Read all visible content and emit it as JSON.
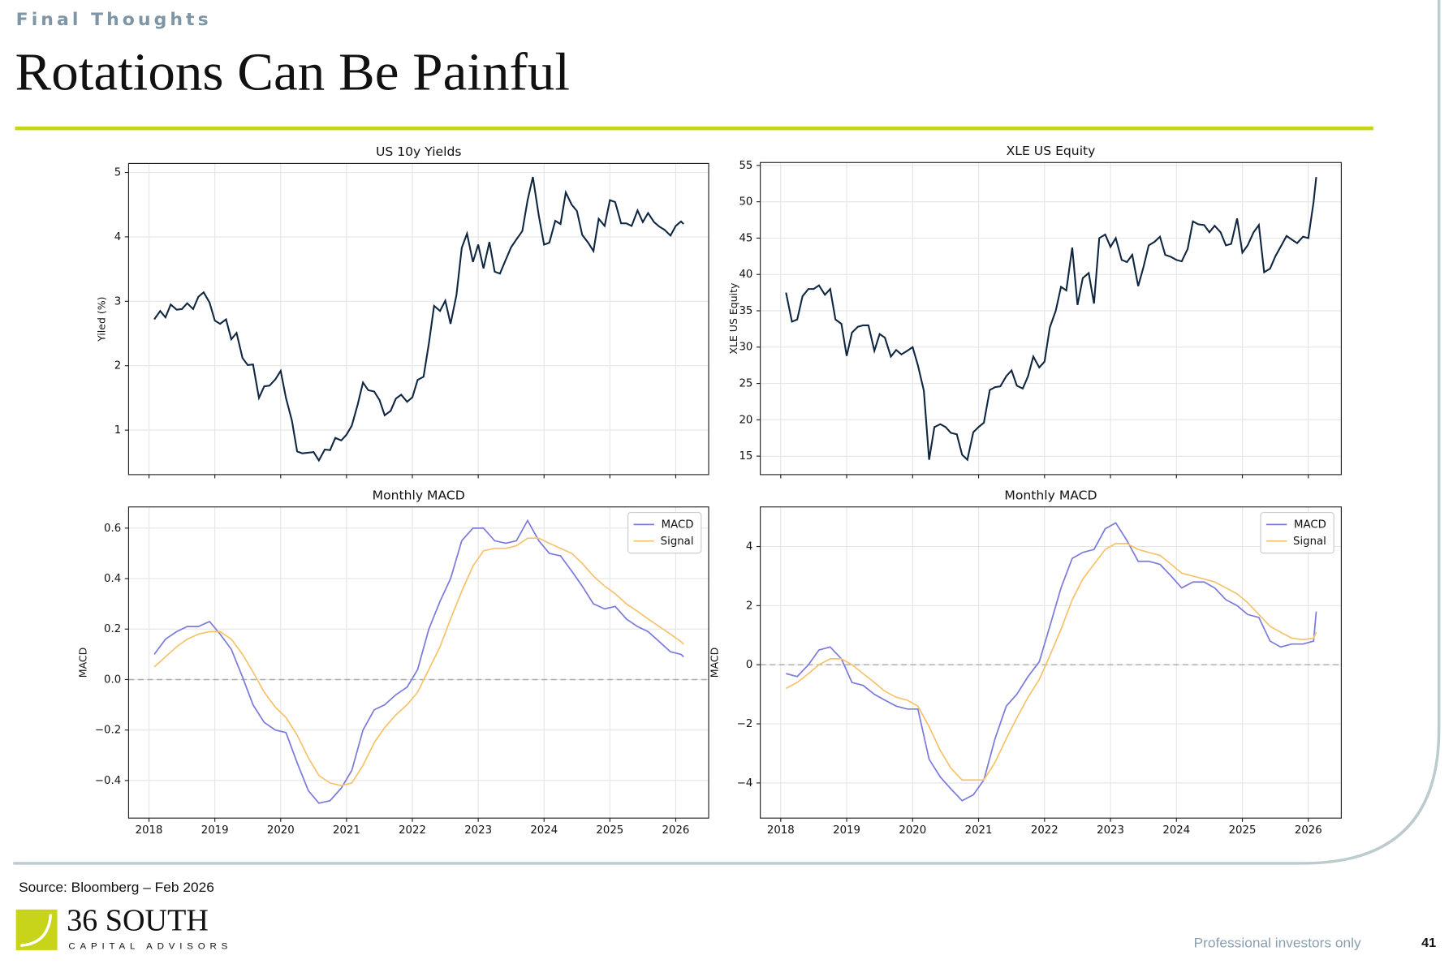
{
  "header": {
    "section": "Final Thoughts",
    "title": "Rotations Can Be Painful"
  },
  "footer": {
    "source": "Source: Bloomberg – Feb 2026",
    "logo_name": "36 SOUTH",
    "logo_tagline": "CAPITAL ADVISORS",
    "disclaimer": "Professional investors only",
    "page_number": "41"
  },
  "chart_data": [
    {
      "type": "line",
      "title": "US 10y Yields",
      "ylabel": "Yiled (%)",
      "xlim": [
        2017.69,
        2026.5
      ],
      "ylim": [
        0.31,
        5.14
      ],
      "xticks": [
        2018,
        2019,
        2020,
        2021,
        2022,
        2023,
        2024,
        2025,
        2026
      ],
      "yticks": [
        1,
        2,
        3,
        4,
        5
      ],
      "grid": true,
      "x": [
        2018.08,
        2018.17,
        2018.25,
        2018.33,
        2018.42,
        2018.5,
        2018.58,
        2018.67,
        2018.75,
        2018.83,
        2018.92,
        2019.0,
        2019.08,
        2019.17,
        2019.25,
        2019.33,
        2019.42,
        2019.5,
        2019.58,
        2019.67,
        2019.75,
        2019.83,
        2019.92,
        2020.0,
        2020.08,
        2020.17,
        2020.25,
        2020.33,
        2020.42,
        2020.5,
        2020.58,
        2020.67,
        2020.75,
        2020.83,
        2020.92,
        2021.0,
        2021.08,
        2021.17,
        2021.25,
        2021.33,
        2021.42,
        2021.5,
        2021.58,
        2021.67,
        2021.75,
        2021.83,
        2021.92,
        2022.0,
        2022.08,
        2022.17,
        2022.25,
        2022.33,
        2022.42,
        2022.5,
        2022.58,
        2022.67,
        2022.75,
        2022.83,
        2022.92,
        2023.0,
        2023.08,
        2023.17,
        2023.25,
        2023.33,
        2023.42,
        2023.5,
        2023.58,
        2023.67,
        2023.75,
        2023.83,
        2023.92,
        2024.0,
        2024.08,
        2024.17,
        2024.25,
        2024.33,
        2024.42,
        2024.5,
        2024.58,
        2024.67,
        2024.75,
        2024.83,
        2024.92,
        2025.0,
        2025.08,
        2025.17,
        2025.25,
        2025.33,
        2025.42,
        2025.5,
        2025.58,
        2025.67,
        2025.75,
        2025.83,
        2025.92,
        2026.0,
        2026.08,
        2026.12
      ],
      "series": [
        {
          "name": "US 10y Yields",
          "color": "#0f2540",
          "values": [
            2.72,
            2.85,
            2.75,
            2.95,
            2.87,
            2.88,
            2.97,
            2.88,
            3.07,
            3.14,
            2.98,
            2.7,
            2.65,
            2.72,
            2.41,
            2.51,
            2.12,
            2.01,
            2.02,
            1.5,
            1.68,
            1.69,
            1.79,
            1.92,
            1.5,
            1.15,
            0.67,
            0.64,
            0.65,
            0.66,
            0.53,
            0.7,
            0.69,
            0.88,
            0.84,
            0.93,
            1.07,
            1.4,
            1.74,
            1.62,
            1.6,
            1.47,
            1.23,
            1.3,
            1.49,
            1.55,
            1.44,
            1.51,
            1.78,
            1.83,
            2.34,
            2.93,
            2.85,
            3.01,
            2.65,
            3.1,
            3.83,
            4.05,
            3.61,
            3.88,
            3.51,
            3.92,
            3.46,
            3.43,
            3.65,
            3.84,
            3.96,
            4.09,
            4.57,
            4.93,
            4.33,
            3.88,
            3.91,
            4.25,
            4.2,
            4.69,
            4.5,
            4.4,
            4.03,
            3.91,
            3.78,
            4.28,
            4.17,
            4.57,
            4.54,
            4.21,
            4.21,
            4.17,
            4.41,
            4.23,
            4.37,
            4.23,
            4.16,
            4.11,
            4.02,
            4.17,
            4.24,
            4.2
          ]
        }
      ]
    },
    {
      "type": "line",
      "title": "XLE US Equity",
      "ylabel": "XLE US Equity",
      "xlim": [
        2017.69,
        2026.5
      ],
      "ylim": [
        12.46,
        55.4
      ],
      "xticks": [
        2018,
        2019,
        2020,
        2021,
        2022,
        2023,
        2024,
        2025,
        2026
      ],
      "yticks": [
        15,
        20,
        25,
        30,
        35,
        40,
        45,
        50,
        55
      ],
      "grid": true,
      "x": [
        2018.08,
        2018.17,
        2018.25,
        2018.33,
        2018.42,
        2018.5,
        2018.58,
        2018.67,
        2018.75,
        2018.83,
        2018.92,
        2019.0,
        2019.08,
        2019.17,
        2019.25,
        2019.33,
        2019.42,
        2019.5,
        2019.58,
        2019.67,
        2019.75,
        2019.83,
        2019.92,
        2020.0,
        2020.08,
        2020.17,
        2020.25,
        2020.33,
        2020.42,
        2020.5,
        2020.58,
        2020.67,
        2020.75,
        2020.83,
        2020.92,
        2021.0,
        2021.08,
        2021.17,
        2021.25,
        2021.33,
        2021.42,
        2021.5,
        2021.58,
        2021.67,
        2021.75,
        2021.83,
        2021.92,
        2022.0,
        2022.08,
        2022.17,
        2022.25,
        2022.33,
        2022.42,
        2022.5,
        2022.58,
        2022.67,
        2022.75,
        2022.83,
        2022.92,
        2023.0,
        2023.08,
        2023.17,
        2023.25,
        2023.33,
        2023.42,
        2023.5,
        2023.58,
        2023.67,
        2023.75,
        2023.83,
        2023.92,
        2024.0,
        2024.08,
        2024.17,
        2024.25,
        2024.33,
        2024.42,
        2024.5,
        2024.58,
        2024.67,
        2024.75,
        2024.83,
        2024.92,
        2025.0,
        2025.08,
        2025.17,
        2025.25,
        2025.33,
        2025.42,
        2025.5,
        2025.58,
        2025.67,
        2025.75,
        2025.83,
        2025.92,
        2026.0,
        2026.08,
        2026.12
      ],
      "series": [
        {
          "name": "XLE US Equity",
          "color": "#0f2540",
          "values": [
            37.5,
            33.5,
            33.8,
            37.0,
            38.0,
            38.0,
            38.5,
            37.2,
            38.0,
            33.8,
            33.2,
            28.8,
            32.0,
            32.8,
            33.0,
            33.0,
            29.5,
            31.8,
            31.3,
            28.7,
            29.6,
            29.0,
            29.5,
            30.0,
            27.5,
            24.0,
            14.5,
            19.0,
            19.4,
            19.0,
            18.2,
            18.0,
            15.2,
            14.5,
            18.3,
            19.0,
            19.6,
            24.1,
            24.5,
            24.6,
            26.0,
            26.8,
            24.7,
            24.3,
            26.0,
            28.7,
            27.2,
            28.0,
            32.7,
            35.0,
            38.3,
            37.8,
            43.7,
            35.8,
            39.5,
            40.2,
            36.0,
            45.0,
            45.5,
            43.8,
            45.0,
            42.0,
            41.7,
            42.7,
            38.4,
            41.0,
            44.0,
            44.5,
            45.2,
            42.7,
            42.4,
            42.0,
            41.8,
            43.5,
            47.3,
            46.9,
            46.8,
            45.8,
            46.7,
            45.8,
            44.0,
            44.2,
            47.7,
            43.0,
            44.0,
            45.8,
            46.8,
            40.3,
            40.8,
            42.5,
            43.8,
            45.3,
            44.8,
            44.3,
            45.2,
            45.0,
            50.0,
            53.4
          ]
        }
      ]
    },
    {
      "type": "line",
      "title": "Monthly MACD",
      "ylabel": "MACD",
      "xlim": [
        2017.69,
        2026.5
      ],
      "ylim": [
        -0.549,
        0.684
      ],
      "xticks": [
        2018,
        2019,
        2020,
        2021,
        2022,
        2023,
        2024,
        2025,
        2026
      ],
      "yticks": [
        {
          "value": -0.4,
          "label": "−0.4"
        },
        {
          "value": -0.2,
          "label": "−0.2"
        },
        {
          "value": 0,
          "label": "0.0"
        },
        0.2,
        0.4,
        0.6
      ],
      "grid": true,
      "legend": "upper right",
      "hlines": [
        0
      ],
      "x": [
        2018.08,
        2018.25,
        2018.42,
        2018.58,
        2018.75,
        2018.92,
        2019.08,
        2019.25,
        2019.42,
        2019.58,
        2019.75,
        2019.92,
        2020.08,
        2020.25,
        2020.42,
        2020.58,
        2020.75,
        2020.92,
        2021.08,
        2021.25,
        2021.42,
        2021.58,
        2021.75,
        2021.92,
        2022.08,
        2022.25,
        2022.42,
        2022.58,
        2022.75,
        2022.92,
        2023.08,
        2023.25,
        2023.42,
        2023.58,
        2023.75,
        2023.92,
        2024.08,
        2024.25,
        2024.42,
        2024.58,
        2024.75,
        2024.92,
        2025.08,
        2025.25,
        2025.42,
        2025.58,
        2025.75,
        2025.92,
        2026.08,
        2026.12
      ],
      "series": [
        {
          "name": "MACD",
          "color": "#7b7bdb",
          "values": [
            0.1,
            0.16,
            0.19,
            0.21,
            0.21,
            0.23,
            0.18,
            0.12,
            0.01,
            -0.1,
            -0.17,
            -0.2,
            -0.21,
            -0.33,
            -0.44,
            -0.49,
            -0.48,
            -0.43,
            -0.36,
            -0.2,
            -0.12,
            -0.1,
            -0.06,
            -0.03,
            0.04,
            0.2,
            0.31,
            0.4,
            0.55,
            0.6,
            0.6,
            0.55,
            0.54,
            0.55,
            0.63,
            0.55,
            0.5,
            0.49,
            0.43,
            0.37,
            0.3,
            0.28,
            0.29,
            0.24,
            0.21,
            0.19,
            0.15,
            0.11,
            0.1,
            0.09
          ]
        },
        {
          "name": "Signal",
          "color": "#f6c36c",
          "values": [
            0.05,
            0.09,
            0.13,
            0.16,
            0.18,
            0.19,
            0.19,
            0.16,
            0.1,
            0.03,
            -0.05,
            -0.11,
            -0.15,
            -0.22,
            -0.31,
            -0.38,
            -0.41,
            -0.42,
            -0.41,
            -0.34,
            -0.25,
            -0.19,
            -0.14,
            -0.1,
            -0.05,
            0.04,
            0.13,
            0.24,
            0.35,
            0.45,
            0.51,
            0.52,
            0.52,
            0.53,
            0.56,
            0.56,
            0.54,
            0.52,
            0.5,
            0.46,
            0.41,
            0.37,
            0.34,
            0.3,
            0.27,
            0.24,
            0.21,
            0.18,
            0.15,
            0.14
          ]
        }
      ]
    },
    {
      "type": "line",
      "title": "Monthly MACD",
      "ylabel": "MACD",
      "xlim": [
        2017.69,
        2026.5
      ],
      "ylim": [
        -5.19,
        5.34
      ],
      "xticks": [
        2018,
        2019,
        2020,
        2021,
        2022,
        2023,
        2024,
        2025,
        2026
      ],
      "yticks": [
        {
          "value": -4,
          "label": "−4"
        },
        {
          "value": -2,
          "label": "−2"
        },
        0,
        2,
        4
      ],
      "grid": true,
      "legend": "upper right",
      "hlines": [
        0
      ],
      "x": [
        2018.08,
        2018.25,
        2018.42,
        2018.58,
        2018.75,
        2018.92,
        2019.08,
        2019.25,
        2019.42,
        2019.58,
        2019.75,
        2019.92,
        2020.08,
        2020.25,
        2020.42,
        2020.58,
        2020.75,
        2020.92,
        2021.08,
        2021.25,
        2021.42,
        2021.58,
        2021.75,
        2021.92,
        2022.08,
        2022.25,
        2022.42,
        2022.58,
        2022.75,
        2022.92,
        2023.08,
        2023.25,
        2023.42,
        2023.58,
        2023.75,
        2023.92,
        2024.08,
        2024.25,
        2024.42,
        2024.58,
        2024.75,
        2024.92,
        2025.08,
        2025.25,
        2025.42,
        2025.58,
        2025.75,
        2025.92,
        2026.08,
        2026.12
      ],
      "series": [
        {
          "name": "MACD",
          "color": "#7b7bdb",
          "values": [
            -0.3,
            -0.4,
            0.0,
            0.5,
            0.6,
            0.2,
            -0.6,
            -0.7,
            -1.0,
            -1.2,
            -1.4,
            -1.5,
            -1.5,
            -3.2,
            -3.8,
            -4.2,
            -4.6,
            -4.4,
            -3.9,
            -2.5,
            -1.4,
            -1.0,
            -0.4,
            0.1,
            1.3,
            2.6,
            3.6,
            3.8,
            3.9,
            4.6,
            4.8,
            4.2,
            3.5,
            3.5,
            3.4,
            3.0,
            2.6,
            2.8,
            2.8,
            2.6,
            2.2,
            2.0,
            1.7,
            1.6,
            0.8,
            0.6,
            0.7,
            0.7,
            0.8,
            1.8
          ]
        },
        {
          "name": "Signal",
          "color": "#f6c36c",
          "values": [
            -0.8,
            -0.6,
            -0.3,
            0.0,
            0.2,
            0.2,
            0.0,
            -0.3,
            -0.6,
            -0.9,
            -1.1,
            -1.2,
            -1.4,
            -2.1,
            -2.9,
            -3.5,
            -3.9,
            -3.9,
            -3.9,
            -3.3,
            -2.5,
            -1.8,
            -1.1,
            -0.5,
            0.3,
            1.2,
            2.2,
            2.9,
            3.4,
            3.9,
            4.1,
            4.1,
            3.9,
            3.8,
            3.7,
            3.4,
            3.1,
            3.0,
            2.9,
            2.8,
            2.6,
            2.4,
            2.1,
            1.7,
            1.3,
            1.1,
            0.9,
            0.85,
            0.9,
            1.1
          ]
        }
      ]
    }
  ]
}
